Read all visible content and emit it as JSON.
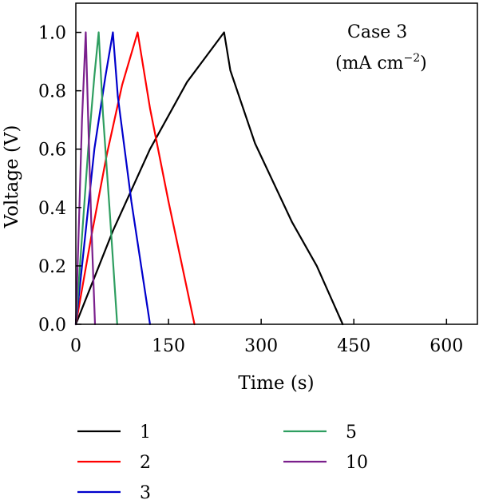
{
  "chart_data": {
    "type": "line",
    "xlabel": "Time (s)",
    "ylabel": "Voltage (V)",
    "xlim": [
      0,
      650
    ],
    "ylim": [
      0,
      1.1
    ],
    "x_ticks": [
      0,
      150,
      300,
      450,
      600
    ],
    "x_tick_labels": [
      "0",
      "150",
      "300",
      "450",
      "600"
    ],
    "y_ticks": [
      0.0,
      0.2,
      0.4,
      0.6,
      0.8,
      1.0
    ],
    "y_tick_labels": [
      "0.0",
      "0.2",
      "0.4",
      "0.6",
      "0.8",
      "1.0"
    ],
    "annotation": {
      "line1": "Case 3",
      "line2_prefix": "(mA cm",
      "line2_sup": "−2",
      "line2_suffix": ")"
    },
    "legend_position": "bottom",
    "grid": false,
    "series": [
      {
        "name": "1",
        "color": "#000000",
        "points": [
          [
            0,
            0.0
          ],
          [
            60,
            0.32
          ],
          [
            120,
            0.6
          ],
          [
            180,
            0.83
          ],
          [
            240,
            1.0
          ],
          [
            250,
            0.87
          ],
          [
            290,
            0.62
          ],
          [
            350,
            0.35
          ],
          [
            390,
            0.2
          ],
          [
            432,
            0.0
          ]
        ]
      },
      {
        "name": "2",
        "color": "#ff0000",
        "points": [
          [
            0,
            0.0
          ],
          [
            25,
            0.3
          ],
          [
            50,
            0.58
          ],
          [
            75,
            0.82
          ],
          [
            100,
            1.0
          ],
          [
            120,
            0.74
          ],
          [
            150,
            0.42
          ],
          [
            170,
            0.22
          ],
          [
            192,
            0.0
          ]
        ]
      },
      {
        "name": "3",
        "color": "#0000cc",
        "points": [
          [
            0,
            0.0
          ],
          [
            15,
            0.3
          ],
          [
            30,
            0.6
          ],
          [
            48,
            0.85
          ],
          [
            60,
            1.0
          ],
          [
            68,
            0.78
          ],
          [
            90,
            0.42
          ],
          [
            120,
            0.0
          ]
        ]
      },
      {
        "name": "5",
        "color": "#2e9e60",
        "points": [
          [
            0,
            0.0
          ],
          [
            10,
            0.3
          ],
          [
            20,
            0.6
          ],
          [
            30,
            0.85
          ],
          [
            37,
            1.0
          ],
          [
            44,
            0.72
          ],
          [
            55,
            0.38
          ],
          [
            67,
            0.0
          ]
        ]
      },
      {
        "name": "10",
        "color": "#7a1f8c",
        "points": [
          [
            0,
            0.0
          ],
          [
            5,
            0.35
          ],
          [
            10,
            0.7
          ],
          [
            16,
            1.0
          ],
          [
            20,
            0.7
          ],
          [
            25,
            0.35
          ],
          [
            31,
            0.0
          ]
        ]
      }
    ]
  }
}
